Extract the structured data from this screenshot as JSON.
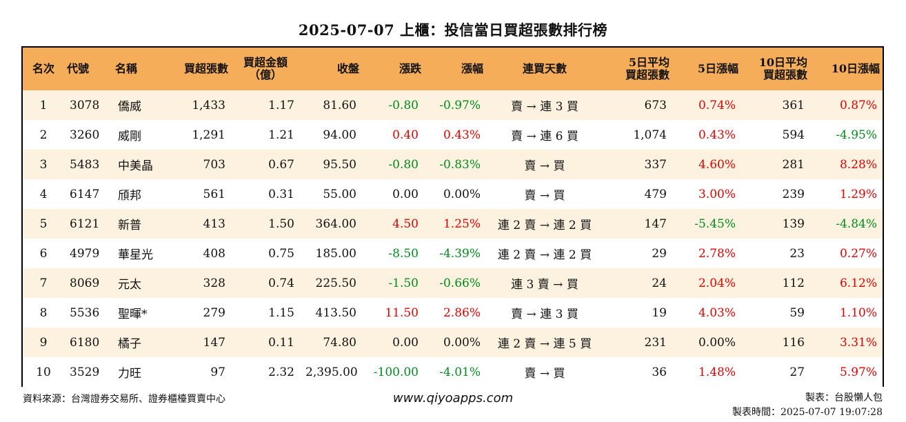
{
  "title": "2025-07-07 上櫃：投信當日買超張數排行榜",
  "headers": {
    "rank": "名次",
    "code": "代號",
    "name": "名稱",
    "net_lots_l1": "買超張數",
    "amount_l1": "買超金額",
    "amount_l2": "（億）",
    "close": "收盤",
    "change": "漲跌",
    "pct": "漲幅",
    "streak": "連買天數",
    "avg5_l1": "5日平均",
    "avg5_l2": "買超張數",
    "pct5": "5日漲幅",
    "avg10_l1": "10日平均",
    "avg10_l2": "買超張數",
    "pct10": "10日漲幅"
  },
  "rows": [
    {
      "rank": "1",
      "code": "3078",
      "name": "僑威",
      "lots": "1,433",
      "amount": "1.17",
      "close": "81.60",
      "change": "-0.80",
      "change_dir": "down",
      "pct": "-0.97%",
      "pct_dir": "down",
      "streak": "賣 → 連 3 買",
      "avg5": "673",
      "pct5": "0.74%",
      "pct5_dir": "up",
      "avg10": "361",
      "pct10": "0.87%",
      "pct10_dir": "up"
    },
    {
      "rank": "2",
      "code": "3260",
      "name": "威剛",
      "lots": "1,291",
      "amount": "1.21",
      "close": "94.00",
      "change": "0.40",
      "change_dir": "up",
      "pct": "0.43%",
      "pct_dir": "up",
      "streak": "賣 → 連 6 買",
      "avg5": "1,074",
      "pct5": "0.43%",
      "pct5_dir": "up",
      "avg10": "594",
      "pct10": "-4.95%",
      "pct10_dir": "down"
    },
    {
      "rank": "3",
      "code": "5483",
      "name": "中美晶",
      "lots": "703",
      "amount": "0.67",
      "close": "95.50",
      "change": "-0.80",
      "change_dir": "down",
      "pct": "-0.83%",
      "pct_dir": "down",
      "streak": "賣 → 買",
      "avg5": "337",
      "pct5": "4.60%",
      "pct5_dir": "up",
      "avg10": "281",
      "pct10": "8.28%",
      "pct10_dir": "up"
    },
    {
      "rank": "4",
      "code": "6147",
      "name": "頎邦",
      "lots": "561",
      "amount": "0.31",
      "close": "55.00",
      "change": "0.00",
      "change_dir": "flat",
      "pct": "0.00%",
      "pct_dir": "flat",
      "streak": "賣 → 買",
      "avg5": "479",
      "pct5": "3.00%",
      "pct5_dir": "up",
      "avg10": "239",
      "pct10": "1.29%",
      "pct10_dir": "up"
    },
    {
      "rank": "5",
      "code": "6121",
      "name": "新普",
      "lots": "413",
      "amount": "1.50",
      "close": "364.00",
      "change": "4.50",
      "change_dir": "up",
      "pct": "1.25%",
      "pct_dir": "up",
      "streak": "連 2 賣 → 連 2 買",
      "avg5": "147",
      "pct5": "-5.45%",
      "pct5_dir": "down",
      "avg10": "139",
      "pct10": "-4.84%",
      "pct10_dir": "down"
    },
    {
      "rank": "6",
      "code": "4979",
      "name": "華星光",
      "lots": "408",
      "amount": "0.75",
      "close": "185.00",
      "change": "-8.50",
      "change_dir": "down",
      "pct": "-4.39%",
      "pct_dir": "down",
      "streak": "連 2 賣 → 連 2 買",
      "avg5": "29",
      "pct5": "2.78%",
      "pct5_dir": "up",
      "avg10": "23",
      "pct10": "0.27%",
      "pct10_dir": "up"
    },
    {
      "rank": "7",
      "code": "8069",
      "name": "元太",
      "lots": "328",
      "amount": "0.74",
      "close": "225.50",
      "change": "-1.50",
      "change_dir": "down",
      "pct": "-0.66%",
      "pct_dir": "down",
      "streak": "連 3 賣 → 買",
      "avg5": "24",
      "pct5": "2.04%",
      "pct5_dir": "up",
      "avg10": "112",
      "pct10": "6.12%",
      "pct10_dir": "up"
    },
    {
      "rank": "8",
      "code": "5536",
      "name": "聖暉*",
      "lots": "279",
      "amount": "1.15",
      "close": "413.50",
      "change": "11.50",
      "change_dir": "up",
      "pct": "2.86%",
      "pct_dir": "up",
      "streak": "賣 → 連 3 買",
      "avg5": "19",
      "pct5": "4.03%",
      "pct5_dir": "up",
      "avg10": "59",
      "pct10": "1.10%",
      "pct10_dir": "up"
    },
    {
      "rank": "9",
      "code": "6180",
      "name": "橘子",
      "lots": "147",
      "amount": "0.11",
      "close": "74.80",
      "change": "0.00",
      "change_dir": "flat",
      "pct": "0.00%",
      "pct_dir": "flat",
      "streak": "連 2 賣 → 連 5 買",
      "avg5": "231",
      "pct5": "0.00%",
      "pct5_dir": "flat",
      "avg10": "116",
      "pct10": "3.31%",
      "pct10_dir": "up"
    },
    {
      "rank": "10",
      "code": "3529",
      "name": "力旺",
      "lots": "97",
      "amount": "2.32",
      "close": "2,395.00",
      "change": "-100.00",
      "change_dir": "down",
      "pct": "-4.01%",
      "pct_dir": "down",
      "streak": "賣 → 買",
      "avg5": "36",
      "pct5": "1.48%",
      "pct5_dir": "up",
      "avg10": "27",
      "pct10": "5.97%",
      "pct10_dir": "up"
    }
  ],
  "footer": {
    "source": "資料來源：台灣證券交易所、證券櫃檯買賣中心",
    "website": "www.qiyoapps.com",
    "maker": "製表：台股懶人包",
    "made_time": "製表時間：2025-07-07 19:07:28"
  },
  "colors": {
    "header_bg": "#f5ad59",
    "row_alt_bg": "#fdf2df",
    "up": "#e10000",
    "down": "#008a1c"
  }
}
